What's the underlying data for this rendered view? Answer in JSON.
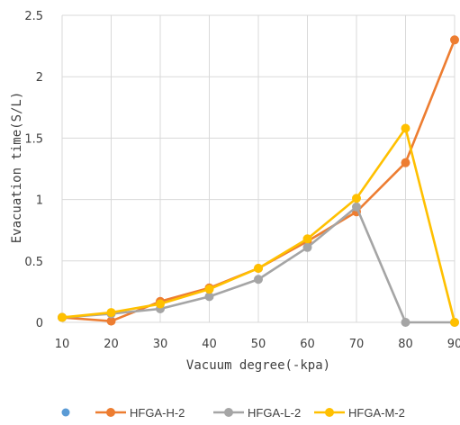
{
  "chart_data": {
    "type": "line",
    "title": "",
    "xlabel": "Vacuum degree(-kpa)",
    "ylabel": "Evacuation time(S/L)",
    "x": [
      10,
      20,
      30,
      40,
      50,
      60,
      70,
      80,
      90
    ],
    "x_ticks": [
      "10",
      "20",
      "30",
      "40",
      "50",
      "60",
      "70",
      "80",
      "90"
    ],
    "xlim": [
      10,
      90
    ],
    "y_ticks": [
      "0",
      "0.5",
      "1",
      "1.5",
      "2",
      "2.5"
    ],
    "ylim": [
      0,
      2.5
    ],
    "grid": true,
    "legend_position": "bottom",
    "legend_dot_color": "#5B9BD5",
    "series": [
      {
        "name": "HFGA-H-2",
        "color": "#ED7D31",
        "values": [
          0.04,
          0.01,
          0.17,
          0.28,
          0.44,
          0.66,
          0.9,
          1.3,
          2.3
        ]
      },
      {
        "name": "HFGA-L-2",
        "color": "#A5A5A5",
        "values": [
          0.04,
          0.07,
          0.11,
          0.21,
          0.35,
          0.61,
          0.94,
          0.0,
          0.0
        ]
      },
      {
        "name": "HFGA-M-2",
        "color": "#FFC000",
        "values": [
          0.04,
          0.08,
          0.15,
          0.27,
          0.44,
          0.68,
          1.01,
          1.58,
          0.0
        ]
      }
    ]
  }
}
